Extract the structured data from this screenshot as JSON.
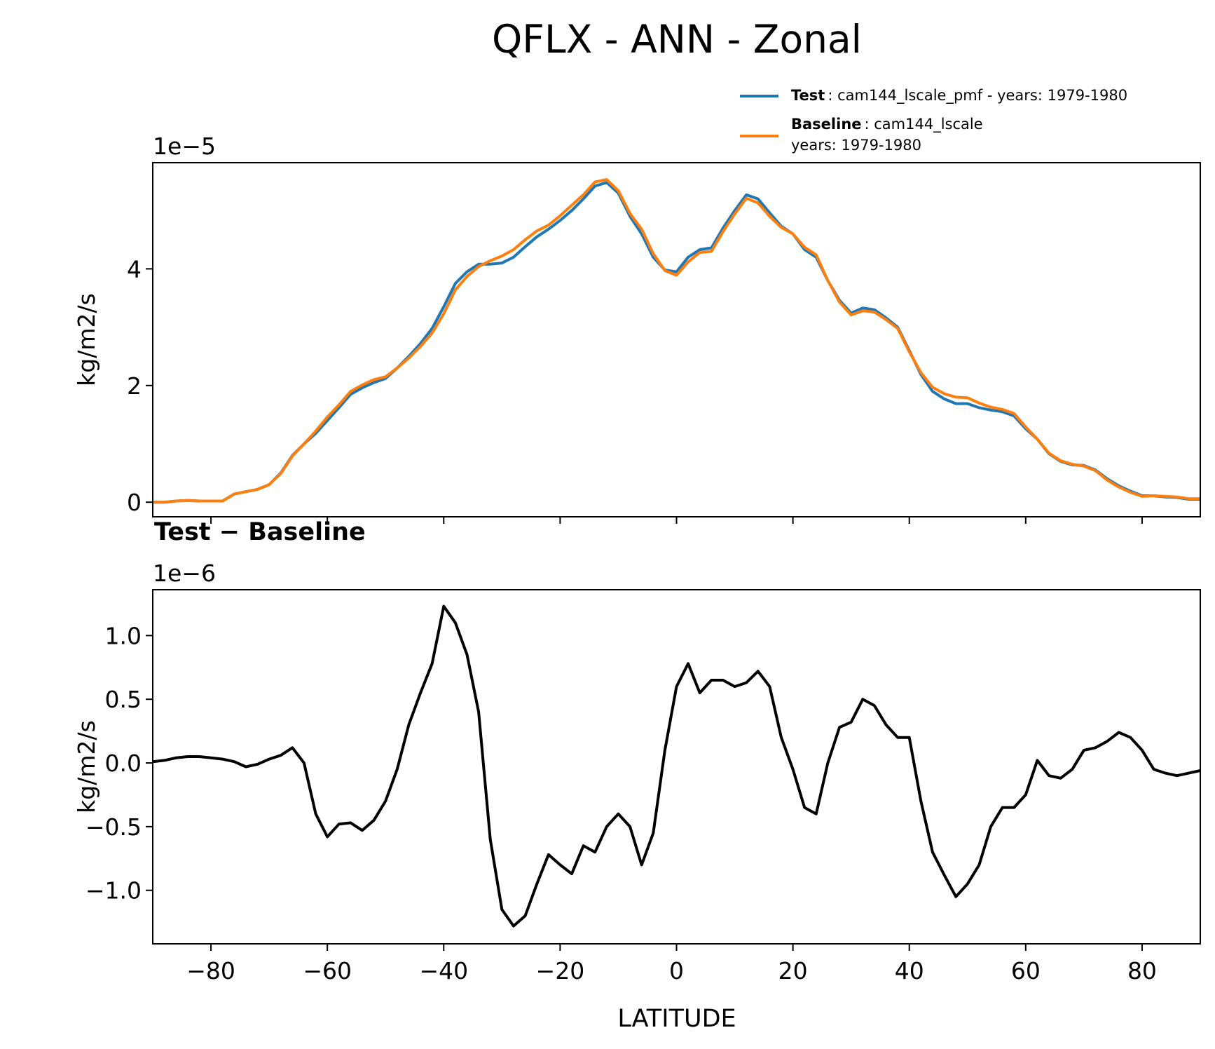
{
  "chart_data": [
    {
      "type": "line",
      "title": "QFLX - ANN - Zonal",
      "ylabel": "kg/m2/s",
      "offset_label": "1e−5",
      "xlim": [
        -90,
        90
      ],
      "ylim": [
        -0.25,
        5.82
      ],
      "yticks": [
        0,
        2,
        4
      ],
      "legend": "upper right",
      "x": [
        -90,
        -88,
        -86,
        -84,
        -82,
        -80,
        -78,
        -76,
        -74,
        -72,
        -70,
        -68,
        -66,
        -64,
        -62,
        -60,
        -58,
        -56,
        -54,
        -52,
        -50,
        -48,
        -46,
        -44,
        -42,
        -40,
        -38,
        -36,
        -34,
        -32,
        -30,
        -28,
        -26,
        -24,
        -22,
        -20,
        -18,
        -16,
        -14,
        -12,
        -10,
        -8,
        -6,
        -4,
        -2,
        0,
        2,
        4,
        6,
        8,
        10,
        12,
        14,
        16,
        18,
        20,
        22,
        24,
        26,
        28,
        30,
        32,
        34,
        36,
        38,
        40,
        42,
        44,
        46,
        48,
        50,
        52,
        54,
        56,
        58,
        60,
        62,
        64,
        66,
        68,
        70,
        72,
        74,
        76,
        78,
        80,
        82,
        84,
        86,
        88,
        90
      ],
      "series": [
        {
          "name": "Test",
          "label": ": cam144_lscale_pmf - years: 1979-1980",
          "color": "#1f77b4",
          "values": [
            0.0,
            0.0,
            0.02,
            0.03,
            0.02,
            0.02,
            0.02,
            0.14,
            0.18,
            0.22,
            0.3,
            0.5,
            0.8,
            1.0,
            1.18,
            1.4,
            1.62,
            1.85,
            1.96,
            2.05,
            2.12,
            2.3,
            2.5,
            2.72,
            2.98,
            3.35,
            3.75,
            3.95,
            4.08,
            4.08,
            4.1,
            4.2,
            4.38,
            4.55,
            4.68,
            4.83,
            5.0,
            5.2,
            5.42,
            5.48,
            5.3,
            4.9,
            4.6,
            4.2,
            3.98,
            3.95,
            4.2,
            4.33,
            4.36,
            4.7,
            5.0,
            5.27,
            5.2,
            4.96,
            4.73,
            4.6,
            4.33,
            4.2,
            3.8,
            3.46,
            3.24,
            3.33,
            3.3,
            3.16,
            3.0,
            2.6,
            2.19,
            1.9,
            1.77,
            1.69,
            1.69,
            1.62,
            1.58,
            1.55,
            1.48,
            1.26,
            1.08,
            0.83,
            0.7,
            0.64,
            0.63,
            0.55,
            0.4,
            0.28,
            0.19,
            0.11,
            0.11,
            0.09,
            0.08,
            0.05,
            0.05
          ]
        },
        {
          "name": "Baseline",
          "label_lines": [
            ": cam144_lscale",
            "years: 1979-1980"
          ],
          "color": "#ff7f0e",
          "values": [
            0.0,
            0.0,
            0.02,
            0.03,
            0.02,
            0.02,
            0.02,
            0.14,
            0.18,
            0.22,
            0.3,
            0.49,
            0.79,
            1.0,
            1.22,
            1.46,
            1.67,
            1.9,
            2.01,
            2.1,
            2.15,
            2.3,
            2.47,
            2.67,
            2.9,
            3.23,
            3.64,
            3.87,
            4.04,
            4.14,
            4.22,
            4.33,
            4.5,
            4.65,
            4.75,
            4.91,
            5.09,
            5.27,
            5.49,
            5.53,
            5.34,
            4.95,
            4.68,
            4.26,
            3.97,
            3.89,
            4.12,
            4.28,
            4.3,
            4.64,
            4.94,
            5.21,
            5.13,
            4.9,
            4.71,
            4.6,
            4.37,
            4.24,
            3.8,
            3.43,
            3.21,
            3.28,
            3.26,
            3.13,
            2.98,
            2.58,
            2.22,
            1.97,
            1.86,
            1.8,
            1.79,
            1.7,
            1.63,
            1.59,
            1.52,
            1.29,
            1.08,
            0.84,
            0.71,
            0.65,
            0.62,
            0.54,
            0.38,
            0.26,
            0.17,
            0.1,
            0.11,
            0.1,
            0.09,
            0.06,
            0.06
          ]
        }
      ]
    },
    {
      "type": "line",
      "title": "Test − Baseline",
      "ylabel": "kg/m2/s",
      "xlabel": "LATITUDE",
      "offset_label": "1e−6",
      "xlim": [
        -90,
        90
      ],
      "ylim": [
        -1.42,
        1.36
      ],
      "xticks": [
        {
          "value": -80,
          "label": "−80"
        },
        {
          "value": -60,
          "label": "−60"
        },
        {
          "value": -40,
          "label": "−40"
        },
        {
          "value": -20,
          "label": "−20"
        },
        0,
        20,
        40,
        60,
        80
      ],
      "yticks": [
        {
          "value": -1,
          "label": "−1.0"
        },
        {
          "value": -0.5,
          "label": "−0.5"
        },
        {
          "value": 0,
          "label": "0.0"
        },
        {
          "value": 0.5,
          "label": "0.5"
        },
        {
          "value": 1,
          "label": "1.0"
        }
      ],
      "x": [
        -90,
        -88,
        -86,
        -84,
        -82,
        -80,
        -78,
        -76,
        -74,
        -72,
        -70,
        -68,
        -66,
        -64,
        -62,
        -60,
        -58,
        -56,
        -54,
        -52,
        -50,
        -48,
        -46,
        -44,
        -42,
        -40,
        -38,
        -36,
        -34,
        -32,
        -30,
        -28,
        -26,
        -24,
        -22,
        -20,
        -18,
        -16,
        -14,
        -12,
        -10,
        -8,
        -6,
        -4,
        -2,
        0,
        2,
        4,
        6,
        8,
        10,
        12,
        14,
        16,
        18,
        20,
        22,
        24,
        26,
        28,
        30,
        32,
        34,
        36,
        38,
        40,
        42,
        44,
        46,
        48,
        50,
        52,
        54,
        56,
        58,
        60,
        62,
        64,
        66,
        68,
        70,
        72,
        74,
        76,
        78,
        80,
        82,
        84,
        86,
        88,
        90
      ],
      "series": [
        {
          "color": "#000000",
          "values": [
            0.01,
            0.02,
            0.04,
            0.05,
            0.05,
            0.04,
            0.03,
            0.01,
            -0.03,
            -0.01,
            0.03,
            0.06,
            0.12,
            0.0,
            -0.4,
            -0.58,
            -0.48,
            -0.47,
            -0.53,
            -0.45,
            -0.3,
            -0.05,
            0.3,
            0.55,
            0.78,
            1.23,
            1.1,
            0.85,
            0.4,
            -0.6,
            -1.15,
            -1.28,
            -1.2,
            -0.95,
            -0.72,
            -0.8,
            -0.87,
            -0.65,
            -0.7,
            -0.5,
            -0.4,
            -0.5,
            -0.8,
            -0.55,
            0.1,
            0.6,
            0.78,
            0.55,
            0.65,
            0.65,
            0.6,
            0.63,
            0.72,
            0.6,
            0.2,
            -0.05,
            -0.35,
            -0.4,
            0.0,
            0.28,
            0.32,
            0.5,
            0.45,
            0.3,
            0.2,
            0.2,
            -0.3,
            -0.7,
            -0.88,
            -1.05,
            -0.95,
            -0.8,
            -0.5,
            -0.35,
            -0.35,
            -0.25,
            0.02,
            -0.1,
            -0.12,
            -0.05,
            0.1,
            0.12,
            0.17,
            0.24,
            0.2,
            0.1,
            -0.05,
            -0.08,
            -0.1,
            -0.08,
            -0.06
          ]
        }
      ]
    }
  ]
}
